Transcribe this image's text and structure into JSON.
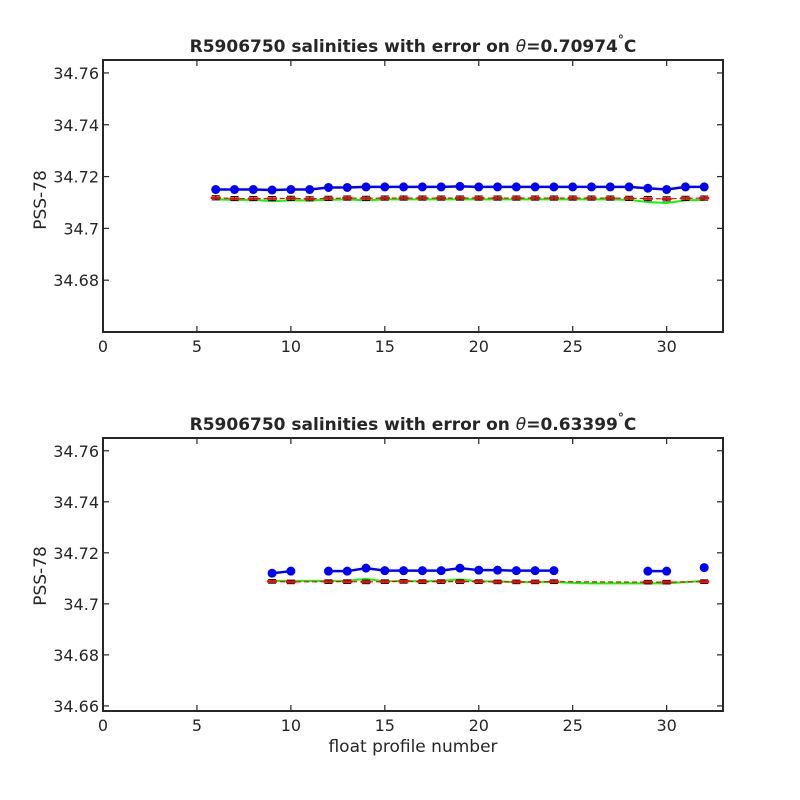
{
  "chart_data": [
    {
      "type": "line",
      "title": {
        "prefix": "R5906750 salinities with error on ",
        "theta": "θ",
        "value": "=0.70974",
        "degree": "°",
        "unit": "C"
      },
      "xlabel": "",
      "ylabel": "PSS-78",
      "xlim": [
        0,
        33
      ],
      "ylim": [
        34.66,
        34.765
      ],
      "xticks": [
        "0",
        "5",
        "10",
        "15",
        "20",
        "25",
        "30"
      ],
      "xtick_values": [
        0,
        5,
        10,
        15,
        20,
        25,
        30
      ],
      "yticks": [
        "34.68",
        "34.7",
        "34.72",
        "34.74",
        "34.76"
      ],
      "ytick_values": [
        34.68,
        34.7,
        34.72,
        34.74,
        34.76
      ],
      "grid": false,
      "series": [
        {
          "color": "#0000ff",
          "style": "line-marker",
          "x": [
            6,
            7,
            8,
            9,
            10,
            11,
            12,
            13,
            14,
            15,
            16,
            17,
            18,
            19,
            20,
            21,
            22,
            23,
            24,
            25,
            26,
            27,
            28,
            29,
            30,
            31,
            32
          ],
          "y": [
            34.715,
            34.715,
            34.715,
            34.7148,
            34.715,
            34.715,
            34.7158,
            34.7158,
            34.716,
            34.716,
            34.716,
            34.716,
            34.716,
            34.7162,
            34.716,
            34.716,
            34.716,
            34.716,
            34.716,
            34.716,
            34.716,
            34.716,
            34.716,
            34.7155,
            34.715,
            34.716,
            34.716
          ]
        },
        {
          "color": "#00ff00",
          "style": "line",
          "x": [
            6,
            7,
            8,
            9,
            10,
            11,
            12,
            13,
            14,
            15,
            16,
            17,
            18,
            19,
            20,
            21,
            22,
            23,
            24,
            25,
            26,
            27,
            28,
            29,
            30,
            31,
            32
          ],
          "y": [
            34.7112,
            34.711,
            34.711,
            34.7105,
            34.7108,
            34.7108,
            34.711,
            34.7112,
            34.7108,
            34.7112,
            34.7112,
            34.7112,
            34.7112,
            34.7112,
            34.7112,
            34.7112,
            34.7112,
            34.7112,
            34.7112,
            34.7112,
            34.7112,
            34.7112,
            34.711,
            34.7102,
            34.7098,
            34.7108,
            34.711
          ]
        },
        {
          "color": "#ff0000",
          "style": "errorbar",
          "x": [
            6,
            7,
            8,
            9,
            10,
            11,
            12,
            13,
            14,
            15,
            16,
            17,
            18,
            19,
            20,
            21,
            22,
            23,
            24,
            25,
            26,
            27,
            28,
            29,
            30,
            31,
            32
          ],
          "y": [
            34.7118,
            34.7115,
            34.7115,
            34.7115,
            34.7116,
            34.7114,
            34.7116,
            34.7117,
            34.7116,
            34.7117,
            34.7117,
            34.7117,
            34.7117,
            34.7117,
            34.7117,
            34.7117,
            34.7117,
            34.7117,
            34.7117,
            34.7117,
            34.7117,
            34.7117,
            34.7116,
            34.7115,
            34.7114,
            34.7116,
            34.7117
          ],
          "err": 0.0008
        }
      ]
    },
    {
      "type": "line",
      "title": {
        "prefix": "R5906750 salinities with error on ",
        "theta": "θ",
        "value": "=0.63399",
        "degree": "°",
        "unit": "C"
      },
      "xlabel": "float profile number",
      "ylabel": "PSS-78",
      "xlim": [
        0,
        33
      ],
      "ylim": [
        34.658,
        34.765
      ],
      "xticks": [
        "0",
        "5",
        "10",
        "15",
        "20",
        "25",
        "30"
      ],
      "xtick_values": [
        0,
        5,
        10,
        15,
        20,
        25,
        30
      ],
      "yticks": [
        "34.66",
        "34.68",
        "34.7",
        "34.72",
        "34.74",
        "34.76"
      ],
      "ytick_values": [
        34.66,
        34.68,
        34.7,
        34.72,
        34.74,
        34.76
      ],
      "grid": false,
      "series": [
        {
          "color": "#0000ff",
          "style": "line-marker",
          "segments": [
            {
              "x": [
                9,
                10
              ],
              "y": [
                34.712,
                34.7128
              ]
            },
            {
              "x": [
                12,
                13,
                14,
                15,
                16,
                17,
                18,
                19,
                20,
                21,
                22,
                23,
                24
              ],
              "y": [
                34.7128,
                34.7128,
                34.714,
                34.713,
                34.713,
                34.713,
                34.713,
                34.714,
                34.7132,
                34.7132,
                34.713,
                34.713,
                34.713
              ]
            },
            {
              "x": [
                29,
                30
              ],
              "y": [
                34.7128,
                34.7128
              ]
            },
            {
              "x": [
                32
              ],
              "y": [
                34.7142
              ]
            }
          ]
        },
        {
          "color": "#00ff00",
          "style": "line",
          "x": [
            9,
            10,
            11,
            12,
            13,
            14,
            15,
            16,
            17,
            18,
            19,
            20,
            21,
            22,
            23,
            24,
            25,
            26,
            27,
            28,
            29,
            30,
            31,
            32
          ],
          "y": [
            34.709,
            34.709,
            34.709,
            34.709,
            34.709,
            34.7098,
            34.7088,
            34.709,
            34.7088,
            34.709,
            34.7096,
            34.7088,
            34.7088,
            34.7085,
            34.7085,
            34.7085,
            34.7082,
            34.708,
            34.708,
            34.708,
            34.708,
            34.708,
            34.7085,
            34.709
          ]
        },
        {
          "color": "#ff0000",
          "style": "errorbar",
          "x": [
            9,
            10,
            12,
            13,
            14,
            15,
            16,
            17,
            18,
            19,
            20,
            21,
            22,
            23,
            24,
            29,
            30,
            32
          ],
          "y": [
            34.7088,
            34.7086,
            34.7087,
            34.7087,
            34.7086,
            34.7087,
            34.7088,
            34.7087,
            34.7087,
            34.7087,
            34.7087,
            34.7086,
            34.7086,
            34.7086,
            34.7087,
            34.7085,
            34.7085,
            34.7087
          ],
          "err": 0.0007
        }
      ]
    }
  ]
}
